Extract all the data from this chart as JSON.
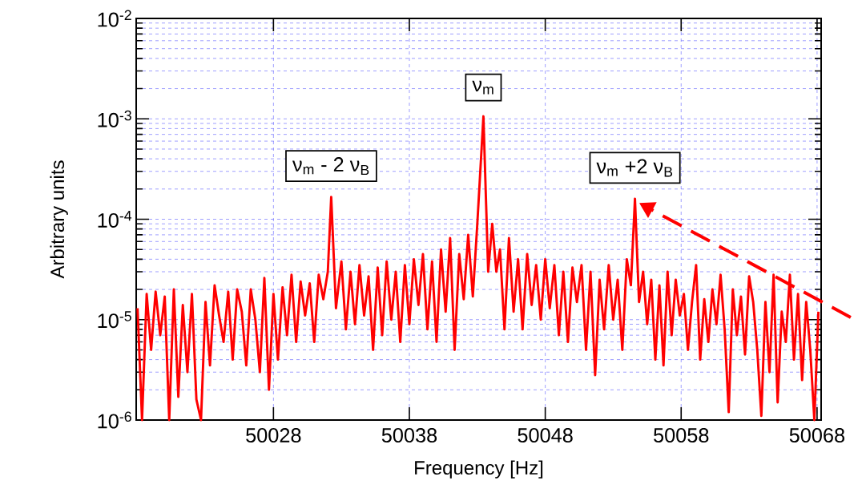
{
  "chart_data": {
    "type": "line",
    "xlabel": "Frequency [Hz]",
    "ylabel": "Arbitrary units",
    "color": "#ff0000",
    "log": "y",
    "grid": true,
    "xlim": [
      50017.9,
      50068.3
    ],
    "ylim": [
      1e-06,
      0.01
    ],
    "xticks": [
      50028,
      50038,
      50048,
      50058,
      50068
    ],
    "yticks": [
      {
        "value": 1e-06,
        "label": "10$^{-6}$"
      },
      {
        "value": 1e-05,
        "label": "10$^{-5}$"
      },
      {
        "value": 0.0001,
        "label": "10$^{-4}$"
      },
      {
        "value": 0.001,
        "label": "10$^{-3}$"
      },
      {
        "value": 0.01,
        "label": "10$^{-2}$"
      }
    ],
    "annotations": [
      {
        "text": "ν$_{m}$  - 2 ν$_{B}$",
        "x": 50032.25,
        "y": 0.000167
      },
      {
        "text": "ν$_{m}$",
        "x": 50043.45,
        "y": 0.00106
      },
      {
        "text": "ν$_{m}$ +2  ν$_{B}$",
        "x": 50054.6,
        "y": 0.00016
      }
    ],
    "x": [
      50018.0,
      50018.33,
      50018.67,
      50019.0,
      50019.33,
      50019.67,
      50020.0,
      50020.33,
      50020.67,
      50021.0,
      50021.33,
      50021.67,
      50022.0,
      50022.33,
      50022.67,
      50023.0,
      50023.33,
      50023.67,
      50024.0,
      50024.33,
      50024.67,
      50025.0,
      50025.33,
      50025.67,
      50026.0,
      50026.33,
      50026.67,
      50027.0,
      50027.33,
      50027.67,
      50028.0,
      50028.33,
      50028.67,
      50029.0,
      50029.33,
      50029.67,
      50030.0,
      50030.33,
      50030.67,
      50031.0,
      50031.33,
      50031.67,
      50032.0,
      50032.25,
      50032.6,
      50033.0,
      50033.33,
      50033.67,
      50034.0,
      50034.33,
      50034.67,
      50035.0,
      50035.33,
      50035.67,
      50036.0,
      50036.33,
      50036.67,
      50037.0,
      50037.33,
      50037.67,
      50038.0,
      50038.33,
      50038.67,
      50039.0,
      50039.33,
      50039.67,
      50040.0,
      50040.33,
      50040.67,
      50041.0,
      50041.33,
      50041.67,
      50042.0,
      50042.33,
      50042.67,
      50043.0,
      50043.45,
      50043.8,
      50044.1,
      50044.4,
      50044.67,
      50045.0,
      50045.33,
      50045.67,
      50046.0,
      50046.33,
      50046.67,
      50047.0,
      50047.33,
      50047.67,
      50048.0,
      50048.33,
      50048.67,
      50049.0,
      50049.33,
      50049.67,
      50050.0,
      50050.33,
      50050.67,
      50051.0,
      50051.33,
      50051.67,
      50052.0,
      50052.33,
      50052.67,
      50053.0,
      50053.33,
      50053.67,
      50054.0,
      50054.3,
      50054.6,
      50054.9,
      50055.2,
      50055.5,
      50055.8,
      50056.1,
      50056.4,
      50056.7,
      50057.0,
      50057.3,
      50057.6,
      50057.9,
      50058.2,
      50058.5,
      50058.8,
      50059.1,
      50059.4,
      50059.7,
      50060.0,
      50060.3,
      50060.6,
      50060.9,
      50061.2,
      50061.5,
      50061.8,
      50062.1,
      50062.4,
      50062.7,
      50063.0,
      50063.3,
      50063.6,
      50063.9,
      50064.2,
      50064.5,
      50064.8,
      50065.1,
      50065.4,
      50065.7,
      50066.0,
      50066.3,
      50066.6,
      50066.9,
      50067.2,
      50067.5,
      50067.8,
      50068.1
    ],
    "values": [
      1.3e-05,
      1e-06,
      1.8e-05,
      5e-06,
      1.9e-05,
      7e-06,
      1.7e-05,
      1e-06,
      2e-05,
      1.7e-06,
      1.4e-05,
      3e-06,
      1.8e-05,
      1.6e-06,
      1e-06,
      1.5e-05,
      3.5e-06,
      2.2e-05,
      1.1e-05,
      6e-06,
      1.9e-05,
      4e-06,
      2e-05,
      1.2e-05,
      3.5e-06,
      2e-05,
      1e-05,
      3e-06,
      2.6e-05,
      2e-06,
      1.8e-05,
      4e-06,
      2.1e-05,
      7e-06,
      2.8e-05,
      6e-06,
      2.4e-05,
      1.1e-05,
      2.3e-05,
      6e-06,
      2.8e-05,
      1.6e-05,
      3e-05,
      0.000167,
      1.3e-05,
      3.8e-05,
      8e-06,
      3e-05,
      9e-06,
      3.5e-05,
      1.1e-05,
      2.7e-05,
      5e-06,
      3.3e-05,
      7e-06,
      3.8e-05,
      1e-05,
      3e-05,
      6e-06,
      3.5e-05,
      9e-06,
      4e-05,
      1.4e-05,
      4.5e-05,
      8e-06,
      3.8e-05,
      6e-06,
      5e-05,
      1.2e-05,
      6.5e-05,
      5e-06,
      4.5e-05,
      1.6e-05,
      7e-05,
      1.7e-05,
      9e-05,
      0.00106,
      3e-05,
      9e-05,
      3e-05,
      5e-05,
      8e-06,
      6.5e-05,
      1.2e-05,
      4e-05,
      8e-06,
      4.5e-05,
      1.4e-05,
      3.5e-05,
      1e-05,
      4e-05,
      1.3e-05,
      3.5e-05,
      7e-06,
      3e-05,
      6e-06,
      3.3e-05,
      1.5e-05,
      3.5e-05,
      5e-06,
      3e-05,
      2.8e-06,
      2.5e-05,
      8e-06,
      3.5e-05,
      1e-05,
      2.5e-05,
      5e-06,
      4e-05,
      2.2e-05,
      0.00016,
      1.5e-05,
      3e-05,
      9e-06,
      2.5e-05,
      4e-06,
      2.2e-05,
      3.5e-06,
      3e-05,
      7e-06,
      2.5e-05,
      1.1e-05,
      1.8e-05,
      5e-06,
      1.5e-05,
      3.5e-05,
      4e-06,
      1.6e-05,
      6e-06,
      2e-05,
      9e-06,
      2.8e-05,
      8e-06,
      1.2e-06,
      2e-05,
      7e-06,
      1.7e-05,
      4.5e-06,
      2.7e-05,
      1.5e-05,
      5e-06,
      1.1e-06,
      1.5e-05,
      3e-06,
      2.8e-05,
      1.5e-06,
      1.2e-05,
      6e-06,
      2.8e-05,
      4e-06,
      1.8e-05,
      2.5e-06,
      1.5e-05,
      5e-06,
      1e-06,
      1.2e-05
    ]
  }
}
